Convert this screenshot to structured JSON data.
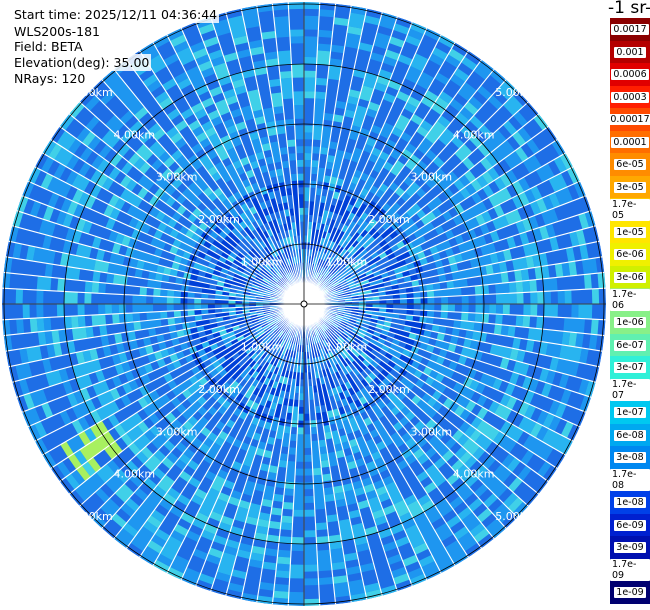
{
  "info": {
    "start_time": "Start time: 2025/12/11 04:36:44",
    "instrument": "WLS200s-181",
    "field": "Field: BETA",
    "elevation": "Elevation(deg): 35.00",
    "nrays": "NRays: 120"
  },
  "colorbar": {
    "title": "-1 sr-",
    "labels": [
      "0.0017",
      "0.001",
      "0.0006",
      "0.0003",
      "0.00017",
      "0.0001",
      "6e-05",
      "3e-05",
      "1.7e-05",
      "1e-05",
      "6e-06",
      "3e-06",
      "1.7e-06",
      "1e-06",
      "6e-07",
      "3e-07",
      "1.7e-07",
      "1e-07",
      "6e-08",
      "3e-08",
      "1.7e-08",
      "1e-08",
      "6e-09",
      "3e-09",
      "1.7e-09",
      "1e-09"
    ],
    "colors": [
      "#8b0000",
      "#b40000",
      "#e00000",
      "#ff1e00",
      "#ff4a00",
      "#ff6e00",
      "#ff8c00",
      "#ffa800",
      "#ffc800",
      "#ffe600",
      "#f0f000",
      "#d0f000",
      "#a8f060",
      "#88f088",
      "#60f0b0",
      "#30f0d8",
      "#00e8e8",
      "#00c8f0",
      "#00a8f0",
      "#0088f0",
      "#0068f0",
      "#0040e8",
      "#0020d0",
      "#0010b0",
      "#000898",
      "#000070"
    ]
  },
  "range_rings": {
    "labels": [
      "1.00km",
      "2.00km",
      "3.00km",
      "4.00km",
      "5.00km"
    ]
  },
  "plot": {
    "type": "polar PPI scan",
    "background": "#ffffff",
    "dominant_colors": [
      "#1e6ee6",
      "#1e96f0",
      "#28b4f0",
      "#40d0e8",
      "#0040d8"
    ],
    "highlight_color": "#a8f060"
  }
}
